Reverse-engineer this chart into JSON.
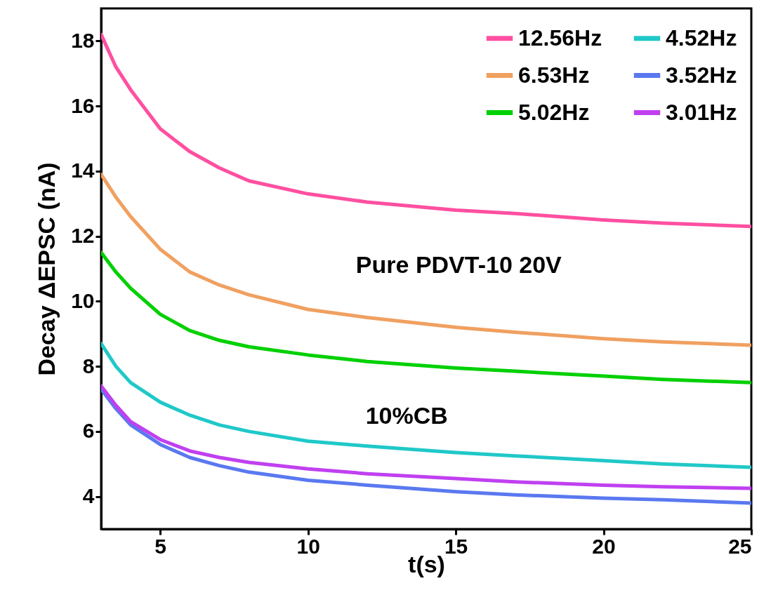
{
  "chart_data": {
    "type": "line",
    "xlabel": "t(s)",
    "ylabel": "Decay ΔEPSC (nA)",
    "xlim": [
      3,
      25
    ],
    "ylim": [
      3,
      19
    ],
    "xticks": [
      5,
      10,
      15,
      20,
      25
    ],
    "yticks": [
      4,
      6,
      8,
      10,
      12,
      14,
      16,
      18
    ],
    "grid": false,
    "legend": "top right",
    "marker": "none",
    "line_style": "solid",
    "x": [
      3,
      3.5,
      4,
      5,
      6,
      7,
      8,
      10,
      12,
      15,
      17,
      20,
      22,
      25
    ],
    "series": [
      {
        "name": "12.56Hz",
        "color": "#ff4fa0",
        "values": [
          18.2,
          17.2,
          16.5,
          15.3,
          14.6,
          14.1,
          13.7,
          13.3,
          13.05,
          12.8,
          12.7,
          12.5,
          12.4,
          12.3
        ]
      },
      {
        "name": "4.52Hz",
        "color": "#20c8c8",
        "values": [
          8.7,
          8.0,
          7.5,
          6.9,
          6.5,
          6.2,
          6.0,
          5.7,
          5.55,
          5.35,
          5.25,
          5.1,
          5.0,
          4.9
        ]
      },
      {
        "name": "6.53Hz",
        "color": "#f0a060",
        "values": [
          13.9,
          13.2,
          12.6,
          11.6,
          10.9,
          10.5,
          10.2,
          9.75,
          9.5,
          9.2,
          9.05,
          8.85,
          8.75,
          8.65
        ]
      },
      {
        "name": "3.52Hz",
        "color": "#5a78f0",
        "values": [
          7.3,
          6.7,
          6.2,
          5.6,
          5.2,
          4.95,
          4.75,
          4.5,
          4.35,
          4.15,
          4.05,
          3.95,
          3.9,
          3.8
        ]
      },
      {
        "name": "5.02Hz",
        "color": "#00d000",
        "values": [
          11.5,
          10.9,
          10.4,
          9.6,
          9.1,
          8.8,
          8.6,
          8.35,
          8.15,
          7.95,
          7.85,
          7.7,
          7.6,
          7.5
        ]
      },
      {
        "name": "3.01Hz",
        "color": "#c040f0",
        "values": [
          7.4,
          6.8,
          6.3,
          5.75,
          5.4,
          5.2,
          5.05,
          4.85,
          4.7,
          4.55,
          4.45,
          4.35,
          4.3,
          4.25
        ]
      }
    ],
    "annotations": [
      "Pure PDVT-10   20V",
      "10%CB"
    ]
  }
}
